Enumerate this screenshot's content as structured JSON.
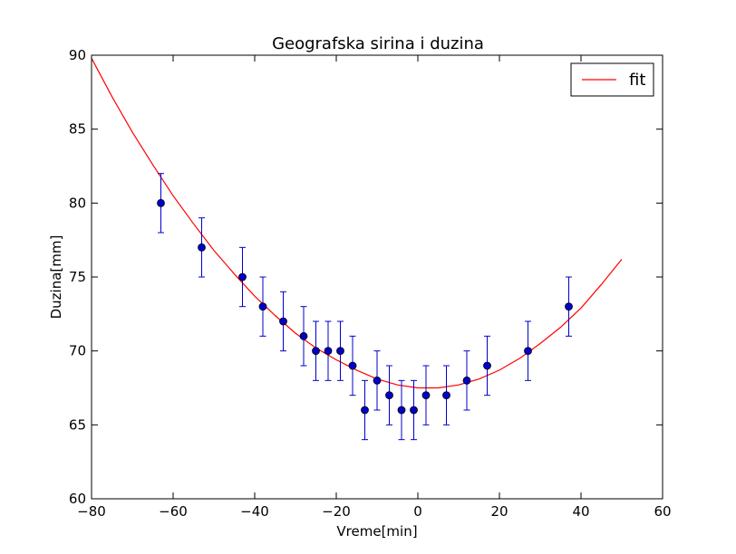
{
  "chart_data": {
    "type": "scatter",
    "title": "Geografska sirina i duzina",
    "xlabel": "Vreme[min]",
    "ylabel": "Duzina[mm]",
    "xlim": [
      -80,
      60
    ],
    "ylim": [
      60,
      90
    ],
    "xticks": [
      -80,
      -60,
      -40,
      -20,
      0,
      20,
      40,
      60
    ],
    "yticks": [
      60,
      65,
      70,
      75,
      80,
      85,
      90
    ],
    "grid": false,
    "legend": {
      "position": "top-right",
      "entries": [
        "fit"
      ]
    },
    "colors": {
      "points": "#0000cc",
      "fit": "#ff0000",
      "errorbars": "#0000cc"
    },
    "series": [
      {
        "kind": "errorbar",
        "x": [
          -63,
          -53,
          -43,
          -38,
          -33,
          -28,
          -25,
          -22,
          -19,
          -16,
          -13,
          -10,
          -7,
          -4,
          -1,
          2,
          7,
          12,
          17,
          27,
          37
        ],
        "y": [
          80,
          77,
          75,
          73,
          72,
          71,
          70,
          70,
          70,
          69,
          66,
          68,
          67,
          66,
          66,
          67,
          67,
          68,
          69,
          70,
          73
        ],
        "yerr": 2
      },
      {
        "name": "fit",
        "kind": "line",
        "x": [
          -80,
          -75,
          -70,
          -65,
          -60,
          -55,
          -50,
          -45,
          -40,
          -35,
          -30,
          -25,
          -20,
          -15,
          -10,
          -5,
          0,
          5,
          10,
          15,
          20,
          25,
          30,
          35,
          40,
          45,
          50
        ],
        "y": [
          89.8,
          87.2,
          84.8,
          82.6,
          80.5,
          78.6,
          76.8,
          75.2,
          73.7,
          72.4,
          71.2,
          70.2,
          69.4,
          68.7,
          68.1,
          67.7,
          67.5,
          67.5,
          67.7,
          68.1,
          68.7,
          69.5,
          70.5,
          71.6,
          72.9,
          74.5,
          76.2
        ]
      }
    ]
  }
}
